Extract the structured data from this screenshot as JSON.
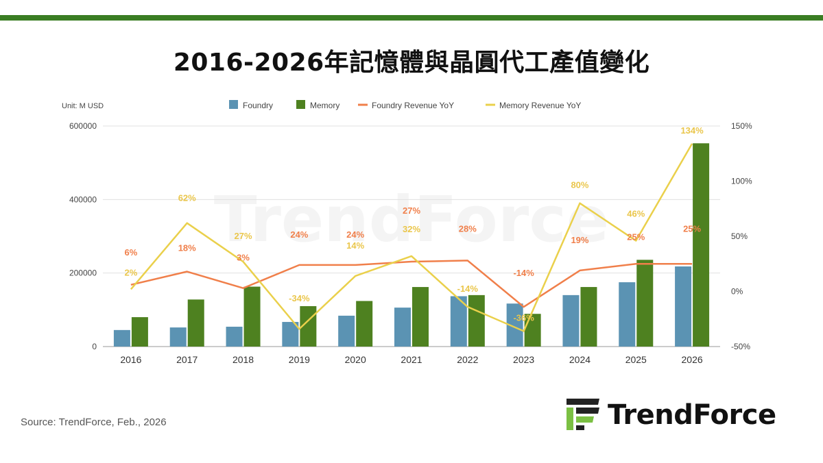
{
  "page": {
    "title": "2016-2026年記憶體與晶圓代工產值變化",
    "source": "Source: TrendForce, Feb., 2026",
    "brand": "TrendForce",
    "watermark": "TrendForce"
  },
  "colors": {
    "top_bar": "#3a7d23",
    "foundry": "#5b93b3",
    "memory": "#4e8120",
    "foundry_yoy": "#f07f4a",
    "memory_yoy": "#ead04b",
    "foundry_label": "#f07f4a",
    "memory_label": "#eac64b",
    "logo_dark": "#222222",
    "logo_green": "#7bc043"
  },
  "icons": {
    "logo": "trendforce-logo-icon"
  },
  "chart_data": {
    "type": "bar",
    "unit_label": "Unit: M USD",
    "categories": [
      "2016",
      "2017",
      "2018",
      "2019",
      "2020",
      "2021",
      "2022",
      "2023",
      "2024",
      "2025",
      "2026"
    ],
    "series": [
      {
        "name": "Foundry",
        "type": "bar",
        "axis": "left",
        "values": [
          45000,
          52000,
          54000,
          67000,
          84000,
          106000,
          137000,
          117000,
          140000,
          175000,
          218000
        ]
      },
      {
        "name": "Memory",
        "type": "bar",
        "axis": "left",
        "values": [
          80000,
          128000,
          163000,
          110000,
          124000,
          162000,
          140000,
          89000,
          162000,
          236000,
          553000
        ]
      },
      {
        "name": "Foundry Revenue YoY",
        "type": "line",
        "axis": "right",
        "values": [
          6,
          18,
          3,
          24,
          24,
          27,
          28,
          -14,
          19,
          25,
          25
        ],
        "labels": [
          "6%",
          "18%",
          "3%",
          "24%",
          "24%",
          "27%",
          "28%",
          "-14%",
          "19%",
          "25%",
          "25%"
        ]
      },
      {
        "name": "Memory Revenue YoY",
        "type": "line",
        "axis": "right",
        "values": [
          2,
          62,
          27,
          -34,
          14,
          32,
          -14,
          -36,
          80,
          46,
          134
        ],
        "labels": [
          "2%",
          "62%",
          "27%",
          "-34%",
          "14%",
          "32%",
          "-14%",
          "-36%",
          "80%",
          "46%",
          "134%"
        ]
      }
    ],
    "left_axis": {
      "ylim": [
        0,
        600000
      ],
      "ticks": [
        "0",
        "200000",
        "400000",
        "600000"
      ],
      "tick_values": [
        0,
        200000,
        400000,
        600000
      ]
    },
    "right_axis": {
      "ylim": [
        -50,
        150
      ],
      "ticks": [
        "-50%",
        "0%",
        "50%",
        "100%",
        "150%"
      ],
      "tick_values": [
        -50,
        0,
        50,
        100,
        150
      ]
    },
    "grid": true,
    "legend_position": "top-center"
  }
}
